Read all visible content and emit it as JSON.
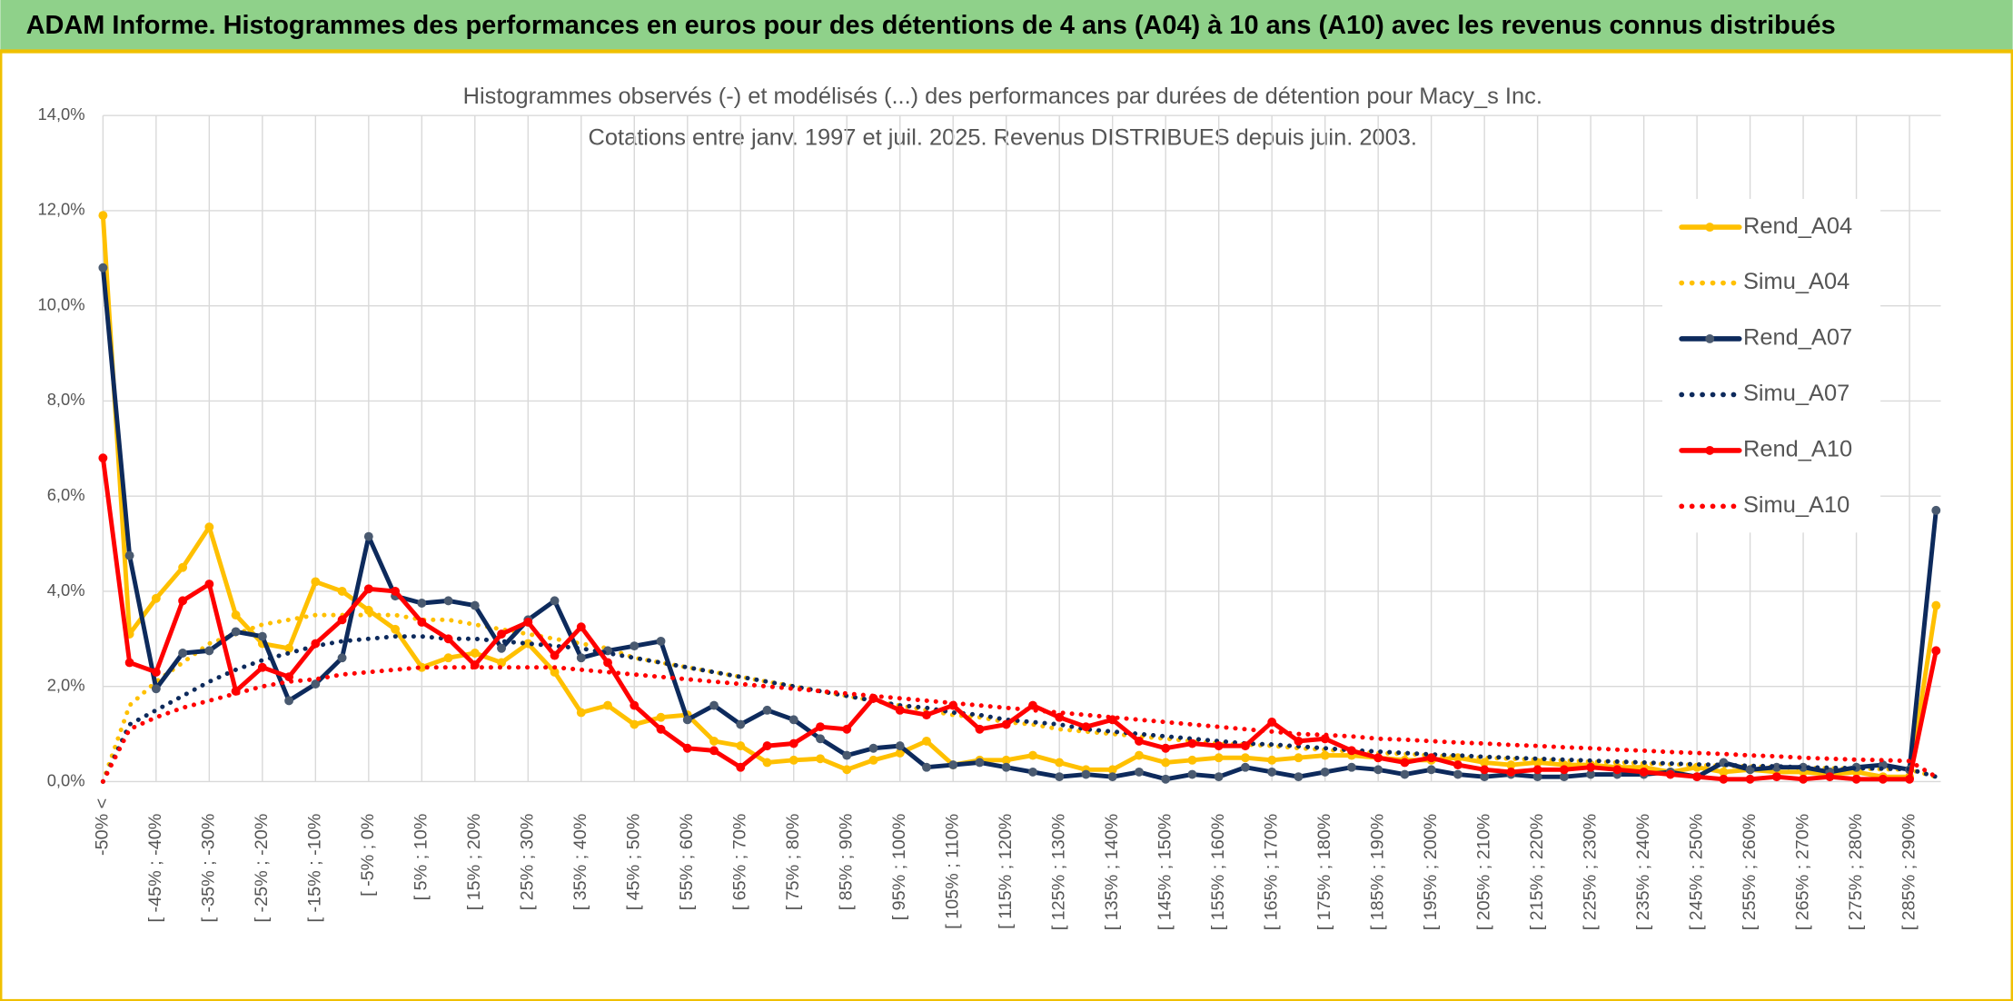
{
  "header": {
    "title": "ADAM Informe. Histogrammes des performances en euros pour des détentions de 4 ans (A04) à 10 ans (A10) avec les revenus connus distribués"
  },
  "chart_data": {
    "type": "line",
    "title": "Histogrammes observés (-) et modélisés (...) des performances par durées de détention pour Macy_s Inc.",
    "subtitle": "Cotations entre janv. 1997 et juil. 2025. Revenus DISTRIBUES depuis juin. 2003.",
    "categories": [
      "-50% <",
      null,
      "[ -45% ; -40%",
      null,
      "[ -35% ; -30%",
      null,
      "[ -25% ; -20%",
      null,
      "[ -15% ; -10%",
      null,
      "[ -5% ; 0%",
      null,
      "[ 5% ; 10%",
      null,
      "[ 15% ; 20%",
      null,
      "[ 25% ; 30%",
      null,
      "[ 35% ; 40%",
      null,
      "[ 45% ; 50%",
      null,
      "[ 55% ; 60%",
      null,
      "[ 65% ; 70%",
      null,
      "[ 75% ; 80%",
      null,
      "[ 85% ; 90%",
      null,
      "[ 95% ; 100%",
      null,
      "[ 105% ; 110%",
      null,
      "[ 115% ; 120%",
      null,
      "[ 125% ; 130%",
      null,
      "[ 135% ; 140%",
      null,
      "[ 145% ; 150%",
      null,
      "[ 155% ; 160%",
      null,
      "[ 165% ; 170%",
      null,
      "[ 175% ; 180%",
      null,
      "[ 185% ; 190%",
      null,
      "[ 195% ; 200%",
      null,
      "[ 205% ; 210%",
      null,
      "[ 215% ; 220%",
      null,
      "[ 225% ; 230%",
      null,
      "[ 235% ; 240%",
      null,
      "[ 245% ; 250%",
      null,
      "[ 255% ; 260%",
      null,
      "[ 265% ; 270%",
      null,
      "[ 275% ; 280%",
      null,
      "[ 285% ; 290%",
      null
    ],
    "series": [
      {
        "name": "Rend_A04",
        "color": "#ffc000",
        "marker_color": "#ffc000",
        "style": "solid",
        "values": [
          11.9,
          3.1,
          3.85,
          4.5,
          5.35,
          3.5,
          2.9,
          2.8,
          4.2,
          4.0,
          3.6,
          3.2,
          2.4,
          2.6,
          2.7,
          2.5,
          2.9,
          2.3,
          1.45,
          1.6,
          1.2,
          1.35,
          1.4,
          0.85,
          0.75,
          0.4,
          0.45,
          0.48,
          0.25,
          0.45,
          0.6,
          0.85,
          0.35,
          0.45,
          0.45,
          0.55,
          0.4,
          0.25,
          0.25,
          0.55,
          0.4,
          0.45,
          0.5,
          0.5,
          0.45,
          0.5,
          0.55,
          0.55,
          0.5,
          0.45,
          0.45,
          0.5,
          0.4,
          0.35,
          0.4,
          0.35,
          0.35,
          0.3,
          0.3,
          0.2,
          0.3,
          0.2,
          0.25,
          0.2,
          0.2,
          0.15,
          0.2,
          0.1,
          0.1,
          3.7
        ]
      },
      {
        "name": "Simu_A04",
        "color": "#ffc000",
        "style": "dotted",
        "values": [
          0,
          1.6,
          2.1,
          2.5,
          2.9,
          3.1,
          3.3,
          3.4,
          3.5,
          3.5,
          3.5,
          3.5,
          3.4,
          3.4,
          3.3,
          3.2,
          3.1,
          3.0,
          2.9,
          2.8,
          2.6,
          2.5,
          2.4,
          2.3,
          2.2,
          2.1,
          2.0,
          1.9,
          1.8,
          1.7,
          1.6,
          1.5,
          1.4,
          1.35,
          1.25,
          1.2,
          1.1,
          1.05,
          1.0,
          0.95,
          0.9,
          0.85,
          0.8,
          0.78,
          0.75,
          0.7,
          0.67,
          0.63,
          0.6,
          0.58,
          0.55,
          0.52,
          0.5,
          0.48,
          0.46,
          0.44,
          0.42,
          0.4,
          0.38,
          0.36,
          0.35,
          0.33,
          0.32,
          0.3,
          0.29,
          0.28,
          0.27,
          0.26,
          0.25,
          0.1
        ]
      },
      {
        "name": "Rend_A07",
        "color": "#0d2a5c",
        "marker_color": "#4a5a70",
        "style": "solid",
        "values": [
          10.8,
          4.75,
          1.95,
          2.7,
          2.75,
          3.15,
          3.05,
          1.7,
          2.05,
          2.6,
          5.15,
          3.9,
          3.75,
          3.8,
          3.7,
          2.8,
          3.4,
          3.8,
          2.6,
          2.75,
          2.85,
          2.95,
          1.3,
          1.6,
          1.2,
          1.5,
          1.3,
          0.9,
          0.55,
          0.7,
          0.75,
          0.3,
          0.35,
          0.4,
          0.3,
          0.2,
          0.1,
          0.15,
          0.1,
          0.2,
          0.05,
          0.15,
          0.1,
          0.3,
          0.2,
          0.1,
          0.2,
          0.3,
          0.25,
          0.15,
          0.25,
          0.15,
          0.1,
          0.15,
          0.1,
          0.1,
          0.15,
          0.15,
          0.15,
          0.2,
          0.1,
          0.4,
          0.25,
          0.3,
          0.3,
          0.2,
          0.3,
          0.35,
          0.25,
          5.7
        ]
      },
      {
        "name": "Simu_A07",
        "color": "#0d2a5c",
        "style": "dotted",
        "values": [
          0,
          1.2,
          1.5,
          1.8,
          2.1,
          2.35,
          2.55,
          2.7,
          2.85,
          2.95,
          3.0,
          3.05,
          3.05,
          3.0,
          3.0,
          2.95,
          2.9,
          2.85,
          2.8,
          2.7,
          2.6,
          2.5,
          2.4,
          2.3,
          2.2,
          2.1,
          2.0,
          1.9,
          1.8,
          1.7,
          1.6,
          1.55,
          1.45,
          1.4,
          1.3,
          1.25,
          1.2,
          1.1,
          1.05,
          1.0,
          0.95,
          0.9,
          0.85,
          0.8,
          0.78,
          0.74,
          0.7,
          0.66,
          0.63,
          0.6,
          0.57,
          0.55,
          0.52,
          0.5,
          0.48,
          0.46,
          0.44,
          0.42,
          0.4,
          0.38,
          0.36,
          0.35,
          0.33,
          0.32,
          0.3,
          0.29,
          0.28,
          0.27,
          0.26,
          0.1
        ]
      },
      {
        "name": "Rend_A10",
        "color": "#ff0000",
        "marker_color": "#ff0000",
        "style": "solid",
        "values": [
          6.8,
          2.5,
          2.3,
          3.8,
          4.15,
          1.9,
          2.4,
          2.2,
          2.9,
          3.4,
          4.05,
          4.0,
          3.35,
          3.0,
          2.45,
          3.1,
          3.35,
          2.65,
          3.25,
          2.5,
          1.6,
          1.1,
          0.7,
          0.65,
          0.3,
          0.75,
          0.8,
          1.15,
          1.1,
          1.75,
          1.5,
          1.4,
          1.6,
          1.1,
          1.2,
          1.6,
          1.35,
          1.15,
          1.3,
          0.85,
          0.7,
          0.8,
          0.75,
          0.75,
          1.25,
          0.85,
          0.9,
          0.65,
          0.5,
          0.4,
          0.5,
          0.35,
          0.25,
          0.2,
          0.25,
          0.25,
          0.3,
          0.25,
          0.2,
          0.15,
          0.1,
          0.05,
          0.05,
          0.1,
          0.05,
          0.1,
          0.05,
          0.05,
          0.05,
          2.75
        ]
      },
      {
        "name": "Simu_A10",
        "color": "#ff0000",
        "style": "dotted",
        "values": [
          0,
          1.1,
          1.35,
          1.55,
          1.7,
          1.85,
          2.0,
          2.1,
          2.15,
          2.25,
          2.3,
          2.35,
          2.4,
          2.4,
          2.4,
          2.4,
          2.4,
          2.4,
          2.35,
          2.3,
          2.25,
          2.2,
          2.15,
          2.1,
          2.05,
          2.0,
          1.95,
          1.9,
          1.85,
          1.8,
          1.75,
          1.7,
          1.65,
          1.6,
          1.55,
          1.5,
          1.45,
          1.4,
          1.35,
          1.3,
          1.25,
          1.2,
          1.15,
          1.1,
          1.05,
          1.0,
          0.98,
          0.95,
          0.9,
          0.88,
          0.85,
          0.82,
          0.8,
          0.77,
          0.75,
          0.72,
          0.7,
          0.67,
          0.65,
          0.62,
          0.6,
          0.58,
          0.55,
          0.53,
          0.5,
          0.48,
          0.46,
          0.45,
          0.43,
          0.1
        ]
      }
    ],
    "ylim": [
      0,
      14
    ],
    "yticks": [
      {
        "value": 0,
        "label": "0,0%"
      },
      {
        "value": 2,
        "label": "2,0%"
      },
      {
        "value": 4,
        "label": "4,0%"
      },
      {
        "value": 6,
        "label": "6,0%"
      },
      {
        "value": 8,
        "label": "8,0%"
      },
      {
        "value": 10,
        "label": "10,0%"
      },
      {
        "value": 12,
        "label": "12,0%"
      },
      {
        "value": 14,
        "label": "14,0%"
      }
    ],
    "grid": true,
    "legend": "right"
  }
}
